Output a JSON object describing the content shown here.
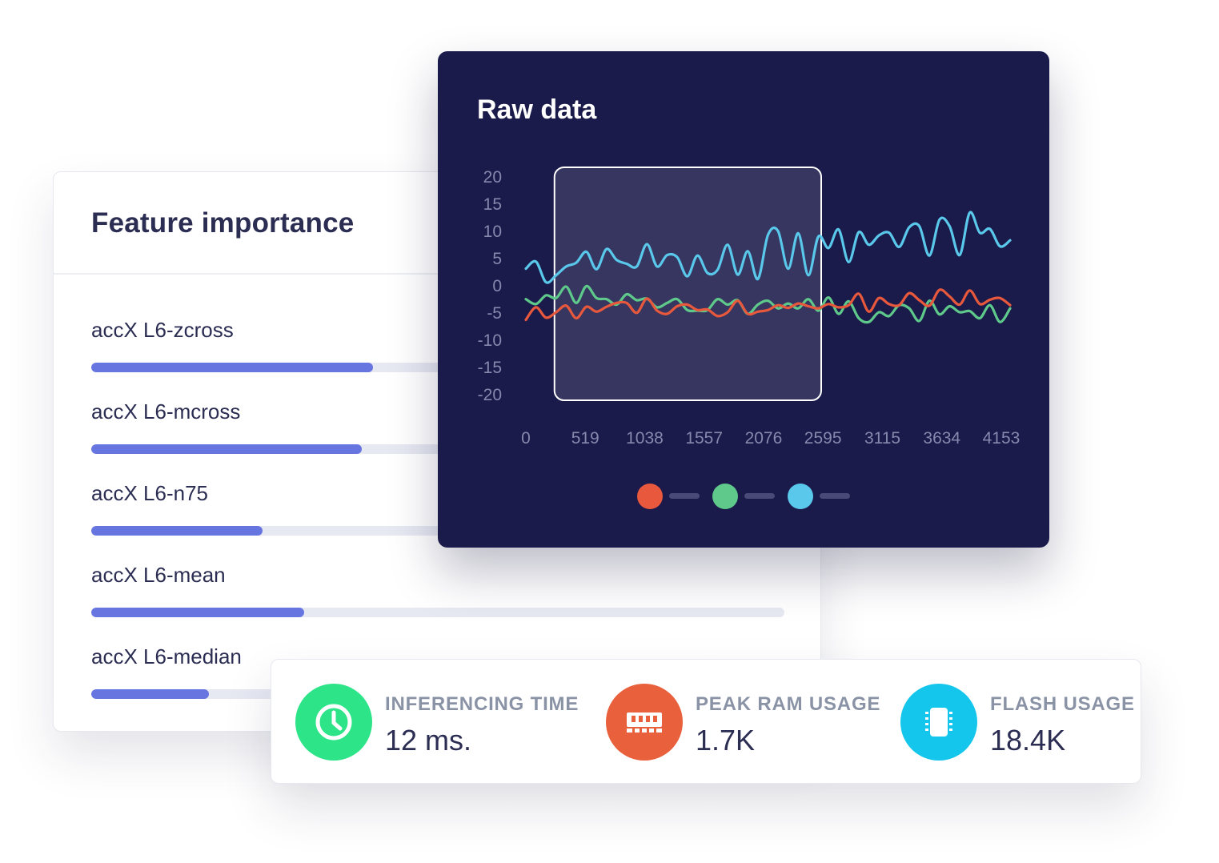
{
  "feature_importance": {
    "title": "Feature importance",
    "items": [
      {
        "label": "accX L6-zcross",
        "value": 0.407
      },
      {
        "label": "accX L6-mcross",
        "value": 0.39
      },
      {
        "label": "accX L6-n75",
        "value": 0.247
      },
      {
        "label": "accX L6-mean",
        "value": 0.307
      },
      {
        "label": "accX L6-median",
        "value": 0.17
      }
    ]
  },
  "raw_data": {
    "title": "Raw data",
    "colors": {
      "background": "#1b1b4b",
      "red": "#e8583c",
      "green": "#5ec98a",
      "blue": "#5ac8ea",
      "axis": "#8489ad"
    }
  },
  "chart_data": {
    "type": "line",
    "title": "Raw data",
    "ylim": [
      -20,
      20
    ],
    "yticks": [
      "20",
      "15",
      "10",
      "5",
      "0",
      "-5",
      "-10",
      "-15",
      "-20"
    ],
    "xticks": [
      "0",
      "519",
      "1038",
      "1557",
      "2076",
      "2595",
      "3115",
      "3634",
      "4153"
    ],
    "xlim": [
      0,
      4230
    ],
    "grid": false,
    "legend_position": "bottom",
    "selection_window": [
      250,
      2580
    ],
    "series": [
      {
        "color": "#5ac8ea",
        "values": [
          3.0,
          4.3,
          0.5,
          1.8,
          3.4,
          4.1,
          6.1,
          2.9,
          6.6,
          4.6,
          3.9,
          3.4,
          7.5,
          3.4,
          5.5,
          5.1,
          1.6,
          5.4,
          2.2,
          2.8,
          7.4,
          1.9,
          6.2,
          1.1,
          9.2,
          9.9,
          3.0,
          9.5,
          1.8,
          8.9,
          6.8,
          10.2,
          4.2,
          9.7,
          7.4,
          9.1,
          9.6,
          7.0,
          10.6,
          10.8,
          5.4,
          12.0,
          10.8,
          5.5,
          13.3,
          9.6,
          10.3,
          7.1,
          8.2
        ]
      },
      {
        "color": "#5ec98a",
        "values": [
          -2.6,
          -3.5,
          -1.9,
          -2.4,
          -0.3,
          -3.3,
          -0.2,
          -2.4,
          -2.6,
          -3.6,
          -1.7,
          -2.8,
          -2.5,
          -4.1,
          -3.3,
          -2.6,
          -4.6,
          -4.7,
          -4.6,
          -2.6,
          -3.6,
          -2.8,
          -5.3,
          -3.6,
          -2.9,
          -4.3,
          -3.4,
          -4.3,
          -2.6,
          -4.7,
          -2.3,
          -5.3,
          -3.0,
          -6.1,
          -6.8,
          -5.0,
          -5.7,
          -3.7,
          -4.3,
          -6.6,
          -2.9,
          -5.4,
          -3.9,
          -5.0,
          -4.8,
          -6.1,
          -3.7,
          -6.8,
          -4.3
        ]
      },
      {
        "color": "#e8583c",
        "values": [
          -6.4,
          -4.1,
          -6.0,
          -5.0,
          -3.8,
          -6.1,
          -4.0,
          -4.9,
          -4.0,
          -3.3,
          -3.3,
          -5.1,
          -2.5,
          -4.7,
          -5.3,
          -3.9,
          -3.6,
          -4.6,
          -4.5,
          -5.7,
          -5.0,
          -2.9,
          -5.3,
          -4.9,
          -4.6,
          -3.7,
          -4.2,
          -3.4,
          -3.9,
          -4.3,
          -3.5,
          -4.1,
          -3.7,
          -1.6,
          -4.9,
          -2.4,
          -3.5,
          -3.7,
          -1.5,
          -2.8,
          -3.8,
          -0.9,
          -2.1,
          -3.6,
          -1.0,
          -3.5,
          -2.7,
          -2.4,
          -3.7
        ]
      }
    ]
  },
  "stats": [
    {
      "label": "INFERENCING TIME",
      "value": "12 ms.",
      "icon": "clock-icon",
      "color": "#2ee489"
    },
    {
      "label": "PEAK RAM USAGE",
      "value": "1.7K",
      "icon": "ram-icon",
      "color": "#e9603d"
    },
    {
      "label": "FLASH USAGE",
      "value": "18.4K",
      "icon": "chip-icon",
      "color": "#14c6eb"
    }
  ]
}
